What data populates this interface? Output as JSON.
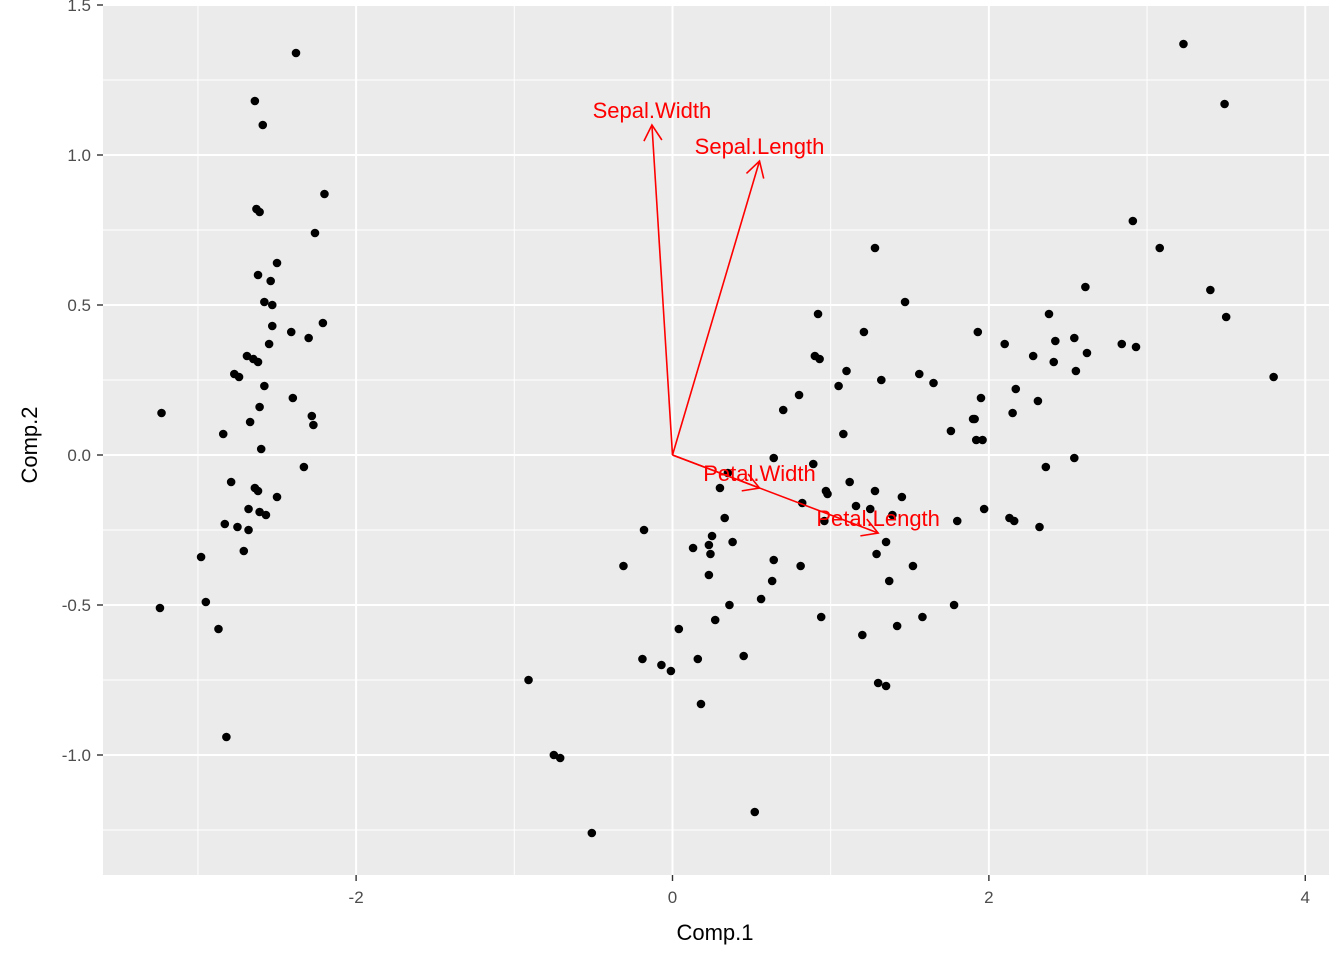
{
  "chart_data": {
    "type": "scatter",
    "xlabel": "Comp.1",
    "ylabel": "Comp.2",
    "xlim": [
      -3.6,
      4.15
    ],
    "ylim": [
      -1.4,
      1.5
    ],
    "x_ticks": [
      -2,
      0,
      2,
      4
    ],
    "y_ticks": [
      -1.0,
      -0.5,
      0.0,
      0.5,
      1.0,
      1.5
    ],
    "x_tick_labels": [
      "-2",
      "0",
      "2",
      "4"
    ],
    "y_tick_labels": [
      "-1.0",
      "-0.5",
      "0.0",
      "0.5",
      "1.0",
      "1.5"
    ],
    "grid": true,
    "colors": {
      "panel": "#ebebeb",
      "grid": "#ffffff",
      "points": "#000000",
      "arrows": "#ff0000"
    },
    "points": [
      [
        -3.23,
        0.14
      ],
      [
        -3.24,
        -0.51
      ],
      [
        -2.98,
        -0.34
      ],
      [
        -2.95,
        -0.49
      ],
      [
        -2.87,
        -0.58
      ],
      [
        -2.84,
        0.07
      ],
      [
        -2.83,
        -0.23
      ],
      [
        -2.82,
        -0.94
      ],
      [
        -2.79,
        -0.09
      ],
      [
        -2.77,
        0.27
      ],
      [
        -2.75,
        -0.24
      ],
      [
        -2.74,
        0.26
      ],
      [
        -2.71,
        -0.32
      ],
      [
        -2.69,
        0.33
      ],
      [
        -2.68,
        -0.25
      ],
      [
        -2.68,
        -0.18
      ],
      [
        -2.67,
        0.11
      ],
      [
        -2.65,
        0.32
      ],
      [
        -2.64,
        -0.11
      ],
      [
        -2.62,
        0.31
      ],
      [
        -2.64,
        1.18
      ],
      [
        -2.63,
        0.82
      ],
      [
        -2.61,
        0.81
      ],
      [
        -2.62,
        -0.12
      ],
      [
        -2.61,
        -0.19
      ],
      [
        -2.62,
        0.6
      ],
      [
        -2.61,
        0.16
      ],
      [
        -2.6,
        0.02
      ],
      [
        -2.59,
        1.1
      ],
      [
        -2.58,
        0.51
      ],
      [
        -2.58,
        0.23
      ],
      [
        -2.57,
        -0.2
      ],
      [
        -2.55,
        0.37
      ],
      [
        -2.54,
        0.58
      ],
      [
        -2.53,
        0.43
      ],
      [
        -2.53,
        0.5
      ],
      [
        -2.5,
        0.64
      ],
      [
        -2.5,
        -0.14
      ],
      [
        -2.41,
        0.41
      ],
      [
        -2.4,
        0.19
      ],
      [
        -2.38,
        1.34
      ],
      [
        -2.33,
        -0.04
      ],
      [
        -2.3,
        0.39
      ],
      [
        -2.28,
        0.13
      ],
      [
        -2.27,
        0.1
      ],
      [
        -2.26,
        0.74
      ],
      [
        -2.2,
        0.87
      ],
      [
        -2.21,
        0.44
      ],
      [
        -0.91,
        -0.75
      ],
      [
        -0.75,
        -1.0
      ],
      [
        -0.71,
        -1.01
      ],
      [
        -0.51,
        -1.26
      ],
      [
        -0.31,
        -0.37
      ],
      [
        -0.18,
        -0.25
      ],
      [
        -0.19,
        -0.68
      ],
      [
        -0.07,
        -0.7
      ],
      [
        -0.01,
        -0.72
      ],
      [
        0.04,
        -0.58
      ],
      [
        0.13,
        -0.31
      ],
      [
        0.16,
        -0.68
      ],
      [
        0.18,
        -0.83
      ],
      [
        0.23,
        -0.3
      ],
      [
        0.24,
        -0.33
      ],
      [
        0.23,
        -0.4
      ],
      [
        0.25,
        -0.27
      ],
      [
        0.27,
        -0.55
      ],
      [
        0.3,
        -0.11
      ],
      [
        0.33,
        -0.21
      ],
      [
        0.35,
        -0.06
      ],
      [
        0.36,
        -0.5
      ],
      [
        0.38,
        -0.29
      ],
      [
        0.45,
        -0.67
      ],
      [
        0.52,
        -1.19
      ],
      [
        0.56,
        -0.48
      ],
      [
        0.63,
        -0.42
      ],
      [
        0.64,
        -0.35
      ],
      [
        0.64,
        -0.01
      ],
      [
        0.7,
        0.15
      ],
      [
        0.8,
        0.2
      ],
      [
        0.81,
        -0.37
      ],
      [
        0.82,
        -0.16
      ],
      [
        0.89,
        -0.03
      ],
      [
        0.9,
        0.33
      ],
      [
        0.92,
        0.47
      ],
      [
        0.93,
        0.32
      ],
      [
        0.94,
        -0.54
      ],
      [
        0.96,
        -0.22
      ],
      [
        0.97,
        -0.12
      ],
      [
        0.98,
        -0.13
      ],
      [
        1.05,
        0.23
      ],
      [
        1.08,
        0.07
      ],
      [
        1.1,
        0.28
      ],
      [
        1.12,
        -0.09
      ],
      [
        1.16,
        -0.17
      ],
      [
        1.2,
        -0.6
      ],
      [
        1.21,
        0.41
      ],
      [
        1.25,
        -0.18
      ],
      [
        1.28,
        0.69
      ],
      [
        1.28,
        -0.12
      ],
      [
        1.29,
        -0.33
      ],
      [
        1.3,
        -0.76
      ],
      [
        1.32,
        0.25
      ],
      [
        1.35,
        -0.77
      ],
      [
        1.35,
        -0.29
      ],
      [
        1.37,
        -0.42
      ],
      [
        1.39,
        -0.2
      ],
      [
        1.42,
        -0.57
      ],
      [
        1.45,
        -0.14
      ],
      [
        1.47,
        0.51
      ],
      [
        1.52,
        -0.37
      ],
      [
        1.56,
        0.27
      ],
      [
        1.58,
        -0.54
      ],
      [
        1.65,
        0.24
      ],
      [
        1.76,
        0.08
      ],
      [
        1.78,
        -0.5
      ],
      [
        1.8,
        -0.22
      ],
      [
        1.9,
        0.12
      ],
      [
        1.91,
        0.12
      ],
      [
        1.92,
        0.05
      ],
      [
        1.93,
        0.41
      ],
      [
        1.95,
        0.19
      ],
      [
        1.96,
        0.05
      ],
      [
        1.97,
        -0.18
      ],
      [
        2.1,
        0.37
      ],
      [
        2.13,
        -0.21
      ],
      [
        2.15,
        0.14
      ],
      [
        2.16,
        -0.22
      ],
      [
        2.17,
        0.22
      ],
      [
        2.28,
        0.33
      ],
      [
        2.31,
        0.18
      ],
      [
        2.32,
        -0.24
      ],
      [
        2.36,
        -0.04
      ],
      [
        2.38,
        0.47
      ],
      [
        2.41,
        0.31
      ],
      [
        2.42,
        0.38
      ],
      [
        2.54,
        0.39
      ],
      [
        2.54,
        -0.01
      ],
      [
        2.55,
        0.28
      ],
      [
        2.61,
        0.56
      ],
      [
        2.62,
        0.34
      ],
      [
        2.84,
        0.37
      ],
      [
        2.91,
        0.78
      ],
      [
        2.93,
        0.36
      ],
      [
        3.08,
        0.69
      ],
      [
        3.23,
        1.37
      ],
      [
        3.4,
        0.55
      ],
      [
        3.49,
        1.17
      ],
      [
        3.5,
        0.46
      ],
      [
        3.8,
        0.26
      ]
    ],
    "loadings": [
      {
        "name": "Sepal.Width",
        "x": -0.13,
        "y": 1.1
      },
      {
        "name": "Sepal.Length",
        "x": 0.55,
        "y": 0.98
      },
      {
        "name": "Petal.Width",
        "x": 0.55,
        "y": -0.11
      },
      {
        "name": "Petal.Length",
        "x": 1.3,
        "y": -0.26
      }
    ]
  }
}
